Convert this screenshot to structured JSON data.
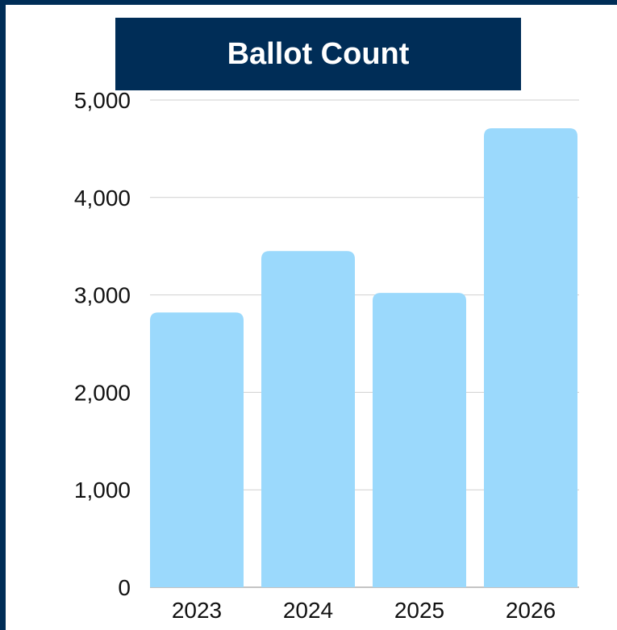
{
  "chart_data": {
    "type": "bar",
    "title": "Ballot Count",
    "xlabel": "",
    "ylabel": "",
    "categories": [
      "2023",
      "2024",
      "2025",
      "2026"
    ],
    "values": [
      2820,
      3450,
      3020,
      4710
    ],
    "ylim": [
      0,
      5000
    ],
    "yticks": [
      "0",
      "1,000",
      "2,000",
      "3,000",
      "4,000",
      "5,000"
    ],
    "grid": true,
    "legend": "none"
  },
  "colors": {
    "bar": "#9bd9fc",
    "title_bg": "#002d57",
    "border": "#002d57",
    "grid": "#cfcfcf"
  }
}
